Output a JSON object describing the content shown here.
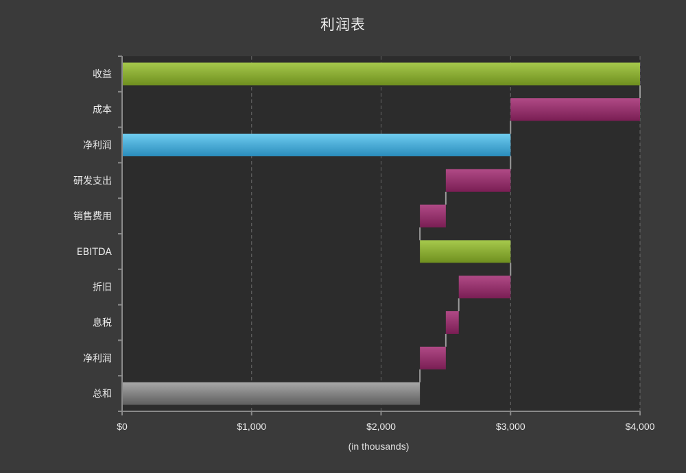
{
  "chart_data": {
    "type": "bar",
    "subtype": "waterfall-horizontal",
    "title": "利润表",
    "xlabel": "(in thousands)",
    "ylabel": "",
    "xlim": [
      0,
      4000
    ],
    "x_ticks": [
      0,
      1000,
      2000,
      3000,
      4000
    ],
    "x_tick_labels": [
      "$0",
      "$1,000",
      "$2,000",
      "$3,000",
      "$4,000"
    ],
    "grid": true,
    "categories": [
      "收益",
      "成本",
      "净利润",
      "研发支出",
      "销售费用",
      "EBITDA",
      "折旧",
      "息税",
      "净利润",
      "总和"
    ],
    "bars": [
      {
        "label": "收益",
        "start": 0,
        "end": 4000,
        "kind": "gain"
      },
      {
        "label": "成本",
        "start": 3000,
        "end": 4000,
        "kind": "loss"
      },
      {
        "label": "净利润",
        "start": 0,
        "end": 3000,
        "kind": "subtotal"
      },
      {
        "label": "研发支出",
        "start": 2500,
        "end": 3000,
        "kind": "loss"
      },
      {
        "label": "销售费用",
        "start": 2300,
        "end": 2500,
        "kind": "loss"
      },
      {
        "label": "EBITDA",
        "start": 2300,
        "end": 3000,
        "kind": "gain"
      },
      {
        "label": "折旧",
        "start": 2600,
        "end": 3000,
        "kind": "loss"
      },
      {
        "label": "息税",
        "start": 2500,
        "end": 2600,
        "kind": "loss"
      },
      {
        "label": "净利润",
        "start": 2300,
        "end": 2500,
        "kind": "loss"
      },
      {
        "label": "总和",
        "start": 0,
        "end": 2300,
        "kind": "total"
      }
    ],
    "colors": {
      "gain": [
        "#a6c94c",
        "#6f8f1f"
      ],
      "loss": [
        "#b04a86",
        "#7a1e54"
      ],
      "subtotal": [
        "#6fcdf0",
        "#2a8cbc"
      ],
      "total": [
        "#a8a8a8",
        "#5e5e5e"
      ],
      "plot_bg": "#2c2c2c",
      "page_bg": "#3a3a3a",
      "grid": "#6a6a6a",
      "axis": "#8a8a8a",
      "connector": "#9a9a9a"
    }
  }
}
